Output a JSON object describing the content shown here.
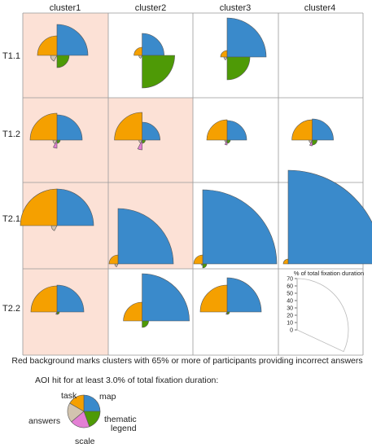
{
  "colors": {
    "task": "#F5A000",
    "map": "#3A8ACB",
    "thematic_legend": "#4E9A06",
    "scale": "#E37FD4",
    "answers": "#D2C4AF",
    "incorrect_bg": "#FCE1D6",
    "grid_line": "#999999"
  },
  "columns": [
    "cluster1",
    "cluster2",
    "cluster3",
    "cluster4"
  ],
  "rows": [
    "T1.1",
    "T1.2",
    "T2.1",
    "T2.2"
  ],
  "note": "Red background marks clusters with 65% or more of participants providing incorrect answers",
  "legend": {
    "title": "AOI hit for at least 3.0% of total fixation duration:",
    "labels": {
      "task": "task",
      "map": "map",
      "thematic": "thematic\nlegend",
      "answers": "answers",
      "scale": "scale"
    }
  },
  "scale_panel": {
    "title": "% of total fixation duration",
    "ticks": [
      0,
      10,
      20,
      30,
      40,
      50,
      60,
      70
    ]
  },
  "chart_data": {
    "type": "rose",
    "unit": "% of total fixation duration",
    "radial_range": [
      0,
      70
    ],
    "sectors": [
      "map",
      "thematic legend",
      "scale",
      "answers",
      "task"
    ],
    "cells": [
      {
        "row": "T1.1",
        "col": "cluster1",
        "incorrect": true,
        "map": 38,
        "thematic_legend": 15,
        "scale": 0,
        "answers": 8,
        "task": 24
      },
      {
        "row": "T1.1",
        "col": "cluster2",
        "incorrect": false,
        "map": 27,
        "thematic_legend": 40,
        "scale": 0,
        "answers": 4,
        "task": 10
      },
      {
        "row": "T1.1",
        "col": "cluster3",
        "incorrect": false,
        "map": 48,
        "thematic_legend": 28,
        "scale": 0,
        "answers": 4,
        "task": 8
      },
      {
        "row": "T1.1",
        "col": "cluster4",
        "incorrect": false
      },
      {
        "row": "T1.2",
        "col": "cluster1",
        "incorrect": true,
        "map": 31,
        "thematic_legend": 4,
        "scale": 10,
        "answers": 5,
        "task": 33
      },
      {
        "row": "T1.2",
        "col": "cluster2",
        "incorrect": true,
        "map": 22,
        "thematic_legend": 4,
        "scale": 12,
        "answers": 4,
        "task": 34
      },
      {
        "row": "T1.2",
        "col": "cluster3",
        "incorrect": false,
        "map": 24,
        "thematic_legend": 4,
        "scale": 6,
        "answers": 3,
        "task": 25
      },
      {
        "row": "T1.2",
        "col": "cluster4",
        "incorrect": false,
        "map": 26,
        "thematic_legend": 6,
        "scale": 7,
        "answers": 4,
        "task": 25
      },
      {
        "row": "T2.1",
        "col": "cluster1",
        "incorrect": true,
        "map": 45,
        "thematic_legend": 0,
        "scale": 0,
        "answers": 7,
        "task": 45
      },
      {
        "row": "T2.1",
        "col": "cluster2",
        "incorrect": true,
        "map": 68,
        "thematic_legend": 0,
        "scale": 0,
        "answers": 4,
        "task": 11
      },
      {
        "row": "T2.1",
        "col": "cluster3",
        "incorrect": false,
        "map": 91,
        "thematic_legend": 5,
        "scale": 0,
        "answers": 2,
        "task": 11
      },
      {
        "row": "T2.1",
        "col": "cluster4",
        "incorrect": false,
        "map": 115,
        "thematic_legend": 0,
        "scale": 0,
        "answers": 0,
        "task": 6
      },
      {
        "row": "T2.2",
        "col": "cluster1",
        "incorrect": true,
        "map": 33,
        "thematic_legend": 3,
        "scale": 3,
        "answers": 0,
        "task": 32
      },
      {
        "row": "T2.2",
        "col": "cluster2",
        "incorrect": false,
        "map": 58,
        "thematic_legend": 8,
        "scale": 0,
        "answers": 0,
        "task": 23
      },
      {
        "row": "T2.2",
        "col": "cluster3",
        "incorrect": false,
        "map": 42,
        "thematic_legend": 3,
        "scale": 3,
        "answers": 0,
        "task": 33
      },
      {
        "row": "T2.2",
        "col": "cluster4",
        "incorrect": false,
        "is_scale": true
      }
    ]
  }
}
